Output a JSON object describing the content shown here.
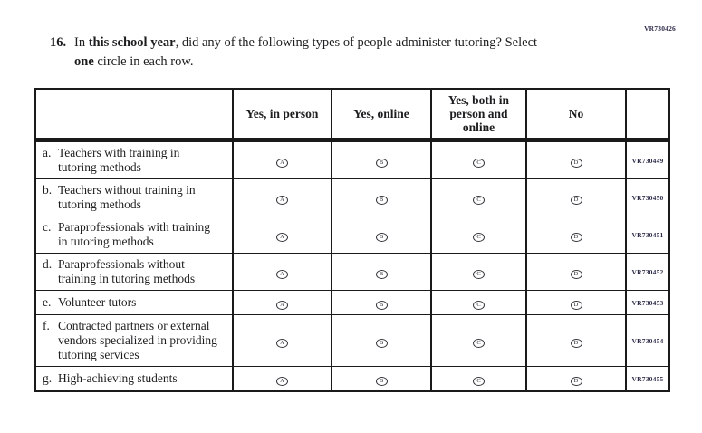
{
  "page": {
    "form_code_top": "VR730426",
    "colors": {
      "ink": "#1d1d1f",
      "table_border": "#1a1a1a",
      "code_ink": "#2c2c4a"
    }
  },
  "question": {
    "number": "16.",
    "segments": [
      {
        "text": "In ",
        "bold": false
      },
      {
        "text": "this school year",
        "bold": true
      },
      {
        "text": ", did any of the following types of people administer tutoring? Select",
        "bold": false
      },
      {
        "br": true
      },
      {
        "text": "one",
        "bold": true
      },
      {
        "text": " circle in each row.",
        "bold": false
      }
    ]
  },
  "table": {
    "columns": [
      "",
      "Yes, in person",
      "Yes, online",
      "Yes, both in person and online",
      "No",
      ""
    ],
    "options": [
      "A",
      "B",
      "C",
      "D"
    ],
    "rows": [
      {
        "letter": "a.",
        "label": "Teachers with training in tutoring methods",
        "code": "VR730449"
      },
      {
        "letter": "b.",
        "label": "Teachers without training in tutoring methods",
        "code": "VR730450"
      },
      {
        "letter": "c.",
        "label": "Paraprofessionals with training in tutoring methods",
        "code": "VR730451"
      },
      {
        "letter": "d.",
        "label": "Paraprofessionals without training in tutoring methods",
        "code": "VR730452"
      },
      {
        "letter": "e.",
        "label": "Volunteer tutors",
        "code": "VR730453"
      },
      {
        "letter": "f.",
        "label": "Contracted partners or external vendors specialized in providing tutoring services",
        "code": "VR730454"
      },
      {
        "letter": "g.",
        "label": "High-achieving students",
        "code": "VR730455"
      }
    ]
  }
}
